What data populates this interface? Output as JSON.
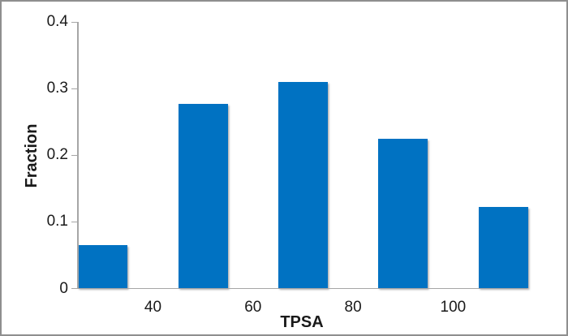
{
  "chart_data": {
    "type": "bar",
    "title": "",
    "xlabel": "TPSA",
    "ylabel": "Fraction",
    "bin_centers": [
      30,
      50,
      70,
      90,
      110
    ],
    "values": [
      0.065,
      0.277,
      0.31,
      0.225,
      0.123
    ],
    "x_ticks": [
      40,
      60,
      80,
      100
    ],
    "x_tick_labels": [
      "40",
      "60",
      "80",
      "100"
    ],
    "y_ticks": [
      0,
      0.1,
      0.2,
      0.3,
      0.4
    ],
    "y_tick_labels": [
      "0",
      "0.1",
      "0.2",
      "0.3",
      "0.4"
    ],
    "ylim": [
      0,
      0.4
    ],
    "xlim": [
      25,
      115
    ],
    "grid": false,
    "legend": null,
    "bar_color": "#0072c2",
    "axis_color": "#a6a6a6",
    "text_color": "#1a1a1a",
    "background_color": "#ffffff",
    "border_color": "#8f8f8f"
  }
}
